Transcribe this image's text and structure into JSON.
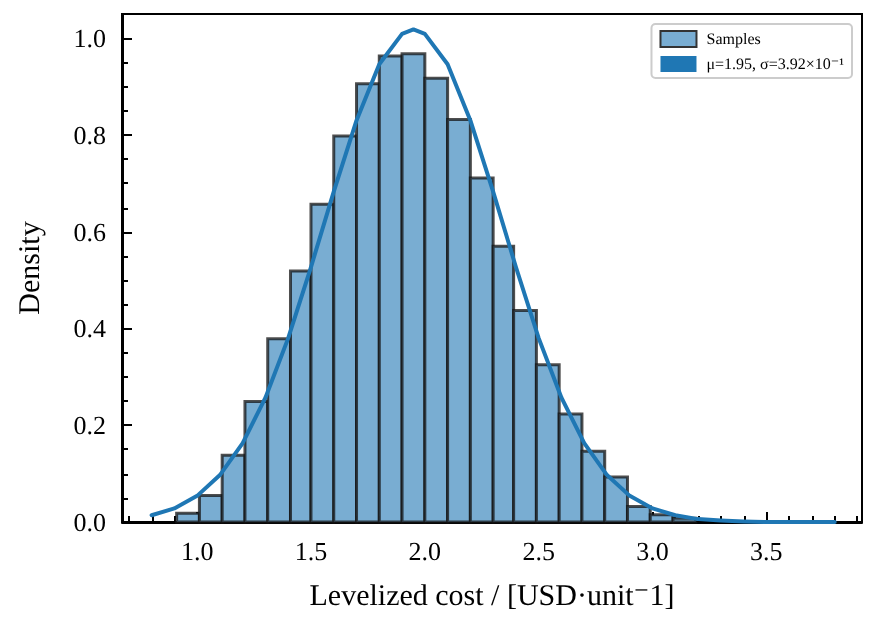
{
  "chart_data": {
    "type": "histogram",
    "xlabel": "Levelized cost / [USD·unit⁻1]",
    "ylabel": "Density",
    "bins": [
      0.91,
      1.01,
      1.11,
      1.21,
      1.31,
      1.41,
      1.5,
      1.6,
      1.7,
      1.8,
      1.9,
      2.0,
      2.1,
      2.2,
      2.3,
      2.39,
      2.49,
      2.59,
      2.69,
      2.79,
      2.89,
      2.99,
      3.09,
      3.19
    ],
    "series": [
      {
        "name": "Samples",
        "color": "#79add2",
        "values": [
          0.018,
          0.055,
          0.138,
          0.249,
          0.379,
          0.519,
          0.657,
          0.798,
          0.906,
          0.963,
          0.968,
          0.917,
          0.832,
          0.711,
          0.57,
          0.437,
          0.325,
          0.223,
          0.146,
          0.093,
          0.032,
          0.015,
          0.008
        ]
      },
      {
        "name": "μ=1.95, σ=3.92×10⁻¹",
        "type": "line",
        "color": "#1f77b4",
        "x": [
          0.8,
          0.9,
          1.0,
          1.1,
          1.2,
          1.3,
          1.4,
          1.5,
          1.6,
          1.7,
          1.8,
          1.9,
          1.95,
          2.0,
          2.1,
          2.2,
          2.3,
          2.4,
          2.5,
          2.6,
          2.7,
          2.8,
          2.9,
          3.0,
          3.1,
          3.2,
          3.3,
          3.4,
          3.5,
          3.6,
          3.7,
          3.8
        ],
        "values": [
          0.014,
          0.028,
          0.054,
          0.097,
          0.163,
          0.257,
          0.38,
          0.527,
          0.683,
          0.83,
          0.946,
          1.009,
          1.018,
          1.009,
          0.946,
          0.83,
          0.683,
          0.527,
          0.38,
          0.257,
          0.163,
          0.097,
          0.054,
          0.028,
          0.014,
          0.006,
          0.003,
          0.001,
          0.0,
          0.0,
          0.0,
          0.0
        ]
      }
    ],
    "xlim": [
      0.67,
      3.92
    ],
    "ylim": [
      0,
      1.05
    ],
    "xticks": [
      {
        "value": 1,
        "label": "1.0"
      },
      {
        "value": 1.5,
        "label": "1.5"
      },
      {
        "value": 2,
        "label": "2.0"
      },
      {
        "value": 2.5,
        "label": "2.5"
      },
      {
        "value": 3,
        "label": "3.0"
      },
      {
        "value": 3.5,
        "label": "3.5"
      }
    ],
    "yticks": [
      {
        "value": 0,
        "label": "0.0"
      },
      {
        "value": 0.2,
        "label": "0.2"
      },
      {
        "value": 0.4,
        "label": "0.4"
      },
      {
        "value": 0.6,
        "label": "0.6"
      },
      {
        "value": 0.8,
        "label": "0.8"
      },
      {
        "value": 1,
        "label": "1.0"
      }
    ],
    "legend": "top right",
    "marker": "none",
    "line_style": "solid"
  }
}
